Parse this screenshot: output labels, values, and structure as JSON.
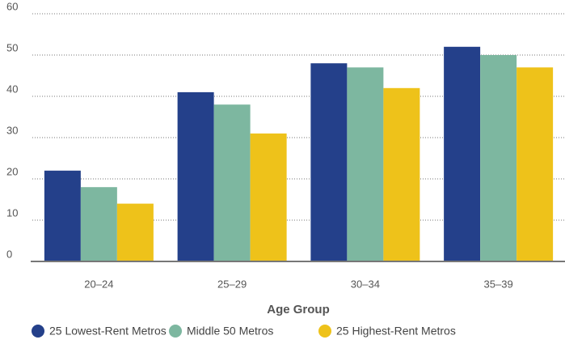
{
  "chart_data": {
    "type": "bar",
    "x_label": "Age Group",
    "categories": [
      "20–24",
      "25–29",
      "30–34",
      "35–39"
    ],
    "series": [
      {
        "name": "25 Lowest-Rent Metros",
        "color": "#24408a",
        "values": [
          22,
          41,
          48,
          52
        ]
      },
      {
        "name": "Middle 50 Metros",
        "color": "#7db7a0",
        "values": [
          18,
          38,
          47,
          50
        ]
      },
      {
        "name": "25 Highest-Rent Metros",
        "color": "#eec21a",
        "values": [
          14,
          31,
          42,
          47
        ]
      }
    ],
    "ylim": [
      0,
      60
    ],
    "yticks": [
      0,
      10,
      20,
      30,
      40,
      50,
      60
    ],
    "grid": true,
    "legend": "bottom"
  }
}
